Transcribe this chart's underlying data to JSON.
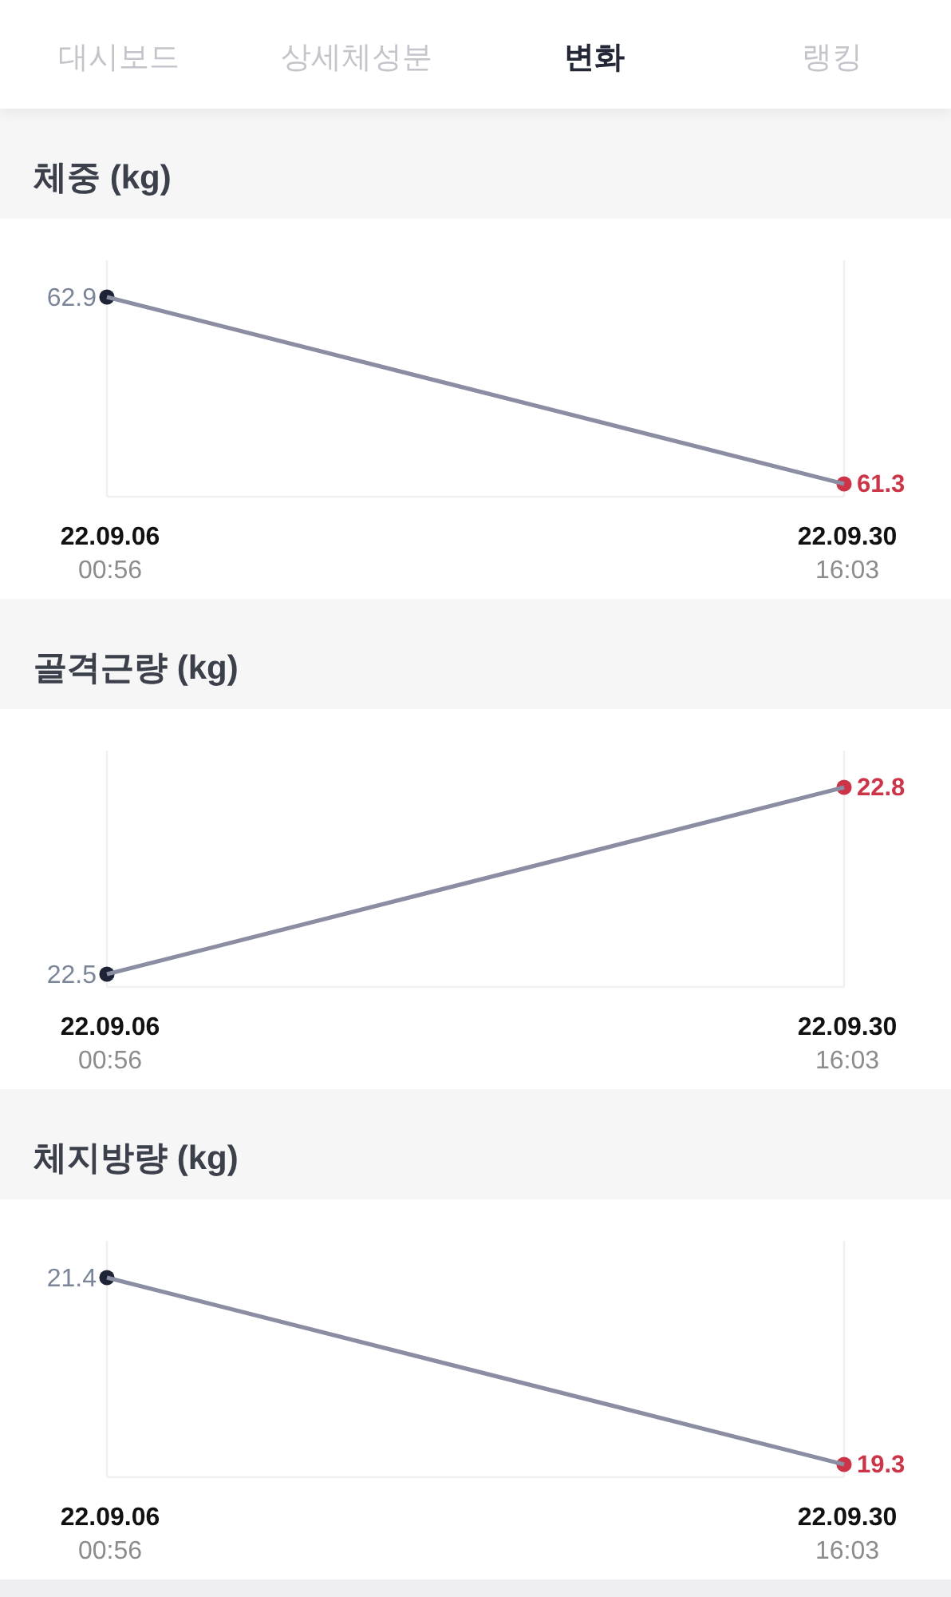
{
  "chart_data": [
    {
      "type": "other",
      "annotations": [
        "대시보드",
        "상세체성분",
        "변화",
        "랭킹"
      ]
    },
    {
      "type": "line",
      "title": "체중 (kg)",
      "categories": [
        "22.09.06\n00:56",
        "22.09.30\n16:03"
      ],
      "values": [
        62.9,
        61.3
      ],
      "color": "#8b8ea3",
      "colors": [
        "#1f2336",
        "#cc3547"
      ],
      "marker": "circle",
      "data_labels": true,
      "grid": "x"
    },
    {
      "type": "line",
      "title": "골격근량 (kg)",
      "categories": [
        "22.09.06\n00:56",
        "22.09.30\n16:03"
      ],
      "values": [
        22.5,
        22.8
      ],
      "color": "#8b8ea3",
      "colors": [
        "#1f2336",
        "#cc3547"
      ],
      "marker": "circle",
      "data_labels": true,
      "grid": "x"
    },
    {
      "type": "line",
      "title": "체지방량 (kg)",
      "categories": [
        "22.09.06\n00:56",
        "22.09.30\n16:03"
      ],
      "values": [
        21.4,
        19.3
      ],
      "color": "#8b8ea3",
      "colors": [
        "#1f2336",
        "#cc3547"
      ],
      "marker": "circle",
      "data_labels": true,
      "grid": "x"
    }
  ]
}
